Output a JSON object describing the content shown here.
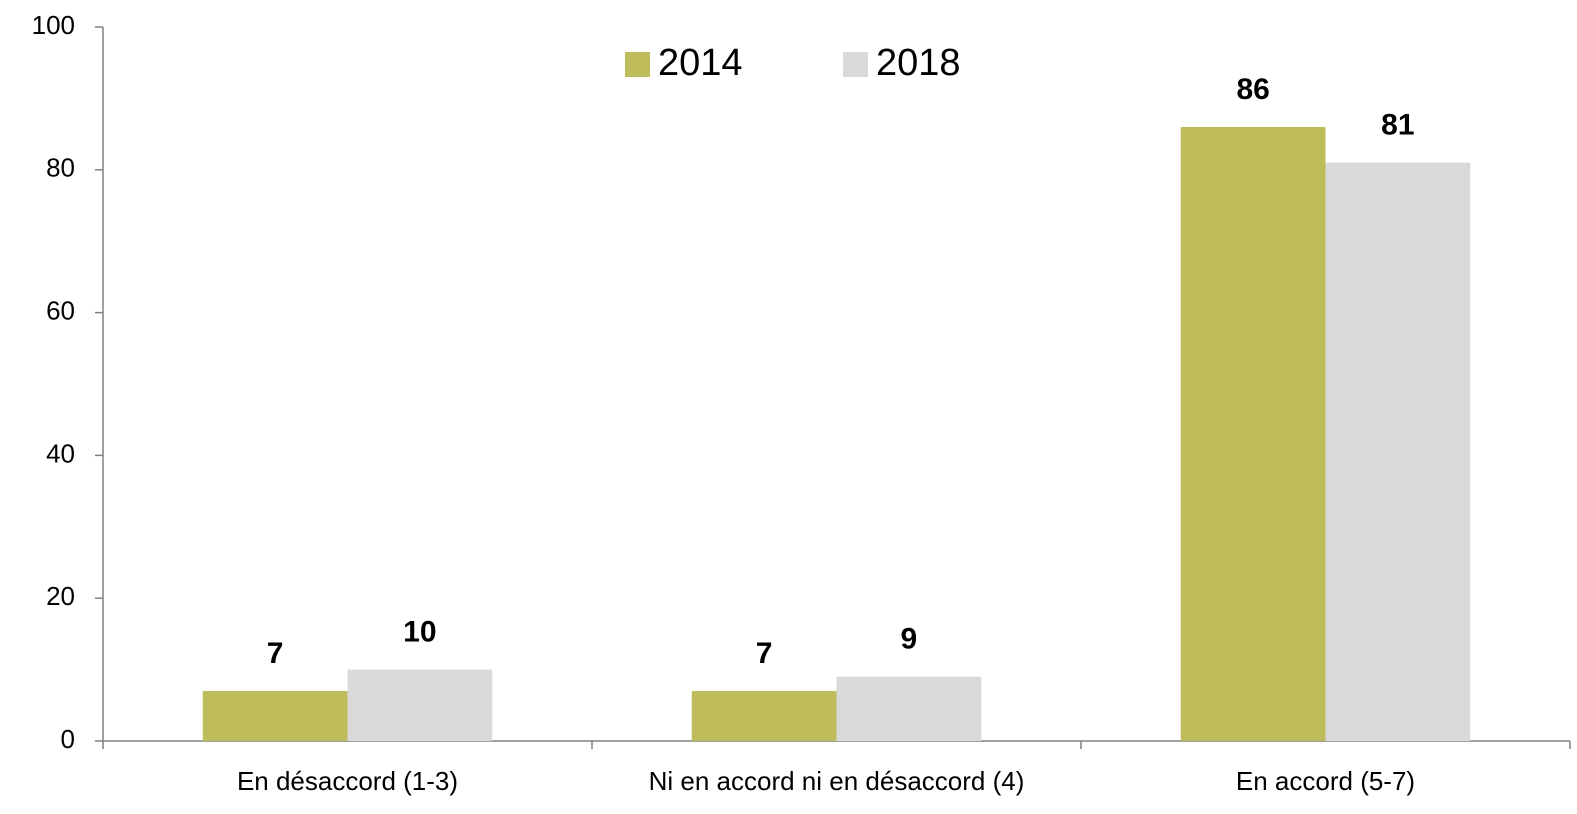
{
  "chart_data": {
    "type": "bar",
    "categories": [
      "En désaccord (1-3)",
      "Ni en accord ni en désaccord (4)",
      "En accord (5-7)"
    ],
    "series": [
      {
        "name": "2014",
        "color": "#bfbd5b",
        "values": [
          7,
          7,
          86
        ]
      },
      {
        "name": "2018",
        "color": "#d9d9d9",
        "values": [
          10,
          9,
          81
        ]
      }
    ],
    "ylim": [
      0,
      100
    ],
    "yticks": [
      0,
      20,
      40,
      60,
      80,
      100
    ],
    "grid": false,
    "legend": "top"
  }
}
